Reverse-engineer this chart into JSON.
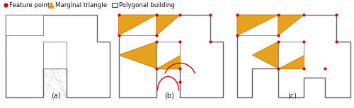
{
  "legend": {
    "feature_point": {
      "label": "Feature point",
      "color": "#cc0000"
    },
    "marginal_triangle": {
      "label": "Marginal triangle",
      "color": "#e8a020"
    },
    "polygonal_building": {
      "label": "Polygonal building"
    }
  },
  "subcaptions": [
    "(a)",
    "(b)",
    "(c)"
  ],
  "background_color": "#ffffff",
  "triangle_fill": "#e8a020",
  "triangle_edge": "#cc8800",
  "red_dot_color": "#cc0000",
  "building_edge_color": "#606060",
  "hatch_color": "#aaaaaa",
  "figsize": [
    5.0,
    1.53
  ],
  "dpi": 100
}
